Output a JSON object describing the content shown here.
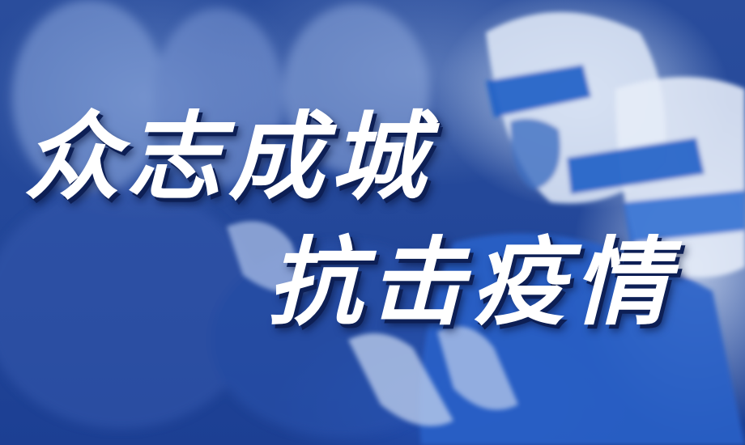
{
  "headline": {
    "line1": "众志成城",
    "line2": "抗击疫情"
  },
  "colors": {
    "background": "#24489a",
    "text": "#ffffff",
    "text_shadow": "#0d1f55"
  }
}
